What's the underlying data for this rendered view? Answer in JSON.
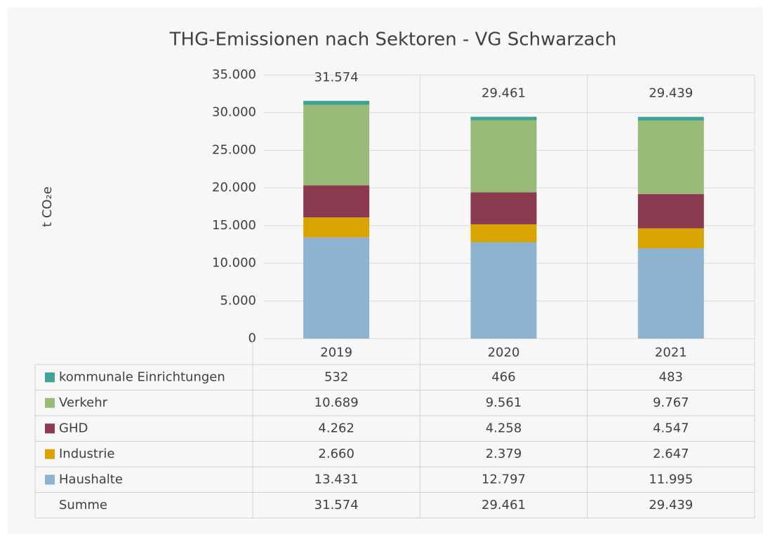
{
  "chart_data": {
    "type": "stacked_bar",
    "title": "THG-Emissionen nach Sektoren - VG Schwarzach",
    "y_label": "t CO₂e",
    "categories": [
      "2019",
      "2020",
      "2021"
    ],
    "series": [
      {
        "name": "Haushalte",
        "color": "#8db3d0",
        "values": [
          13431,
          12797,
          11995
        ],
        "value_labels": [
          "13.431",
          "12.797",
          "11.995"
        ]
      },
      {
        "name": "Industrie",
        "color": "#d9a300",
        "values": [
          2660,
          2379,
          2647
        ],
        "value_labels": [
          "2.660",
          "2.379",
          "2.647"
        ]
      },
      {
        "name": "GHD",
        "color": "#8b3a4f",
        "values": [
          4262,
          4258,
          4547
        ],
        "value_labels": [
          "4.262",
          "4.258",
          "4.547"
        ]
      },
      {
        "name": "Verkehr",
        "color": "#98bb78",
        "values": [
          10689,
          9561,
          9767
        ],
        "value_labels": [
          "10.689",
          "9.561",
          "9.767"
        ]
      },
      {
        "name": "kommunale Einrichtungen",
        "color": "#3fa396",
        "values": [
          532,
          466,
          483
        ],
        "value_labels": [
          "532",
          "466",
          "483"
        ]
      }
    ],
    "totals": {
      "name": "Summe",
      "values": [
        31574,
        29461,
        29439
      ],
      "value_labels": [
        "31.574",
        "29.461",
        "29.439"
      ]
    },
    "ylim": [
      0,
      35000
    ],
    "yticks": [
      0,
      {
        "value": 5000,
        "label": "5.000"
      },
      {
        "value": 10000,
        "label": "10.000"
      },
      {
        "value": 15000,
        "label": "15.000"
      },
      {
        "value": 20000,
        "label": "20.000"
      },
      {
        "value": 25000,
        "label": "25.000"
      },
      {
        "value": 30000,
        "label": "30.000"
      },
      {
        "value": 35000,
        "label": "35.000"
      }
    ],
    "grid": true
  }
}
